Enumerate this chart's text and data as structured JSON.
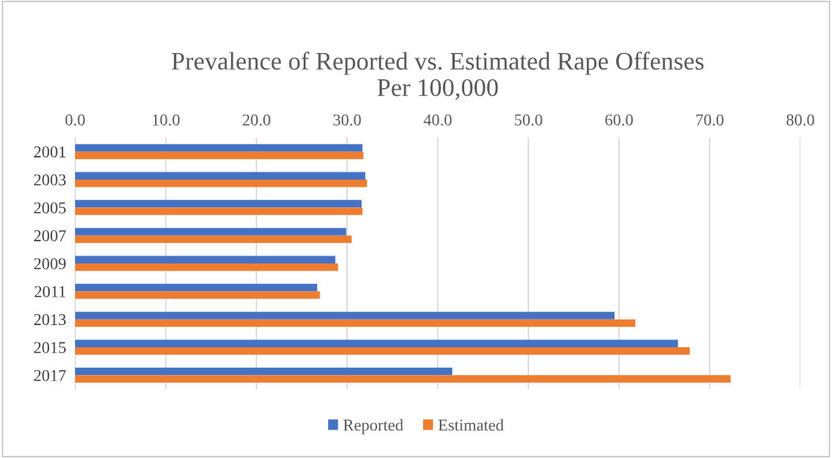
{
  "chart_data": {
    "type": "bar",
    "orientation": "horizontal",
    "title": "Prevalence of Reported vs. Estimated Rape Offenses\nPer 100,000",
    "categories": [
      "2001",
      "2003",
      "2005",
      "2007",
      "2009",
      "2011",
      "2013",
      "2015",
      "2017"
    ],
    "series": [
      {
        "name": "Reported",
        "color": "#4472c4",
        "values": [
          31.7,
          32.0,
          31.6,
          29.9,
          28.7,
          26.7,
          59.5,
          66.5,
          41.6
        ]
      },
      {
        "name": "Estimated",
        "color": "#ed7d31",
        "values": [
          31.8,
          32.2,
          31.7,
          30.5,
          29.0,
          27.0,
          61.8,
          67.8,
          72.3
        ]
      }
    ],
    "xlim": [
      0,
      80
    ],
    "xticks": [
      {
        "value": 0,
        "label": "0.0"
      },
      {
        "value": 10,
        "label": "10.0"
      },
      {
        "value": 20,
        "label": "20.0"
      },
      {
        "value": 30,
        "label": "30.0"
      },
      {
        "value": 40,
        "label": "40.0"
      },
      {
        "value": 50,
        "label": "50.0"
      },
      {
        "value": 60,
        "label": "60.0"
      },
      {
        "value": 70,
        "label": "70.0"
      },
      {
        "value": 80,
        "label": "80.0"
      }
    ],
    "grid": "x",
    "legend": "bottom"
  }
}
